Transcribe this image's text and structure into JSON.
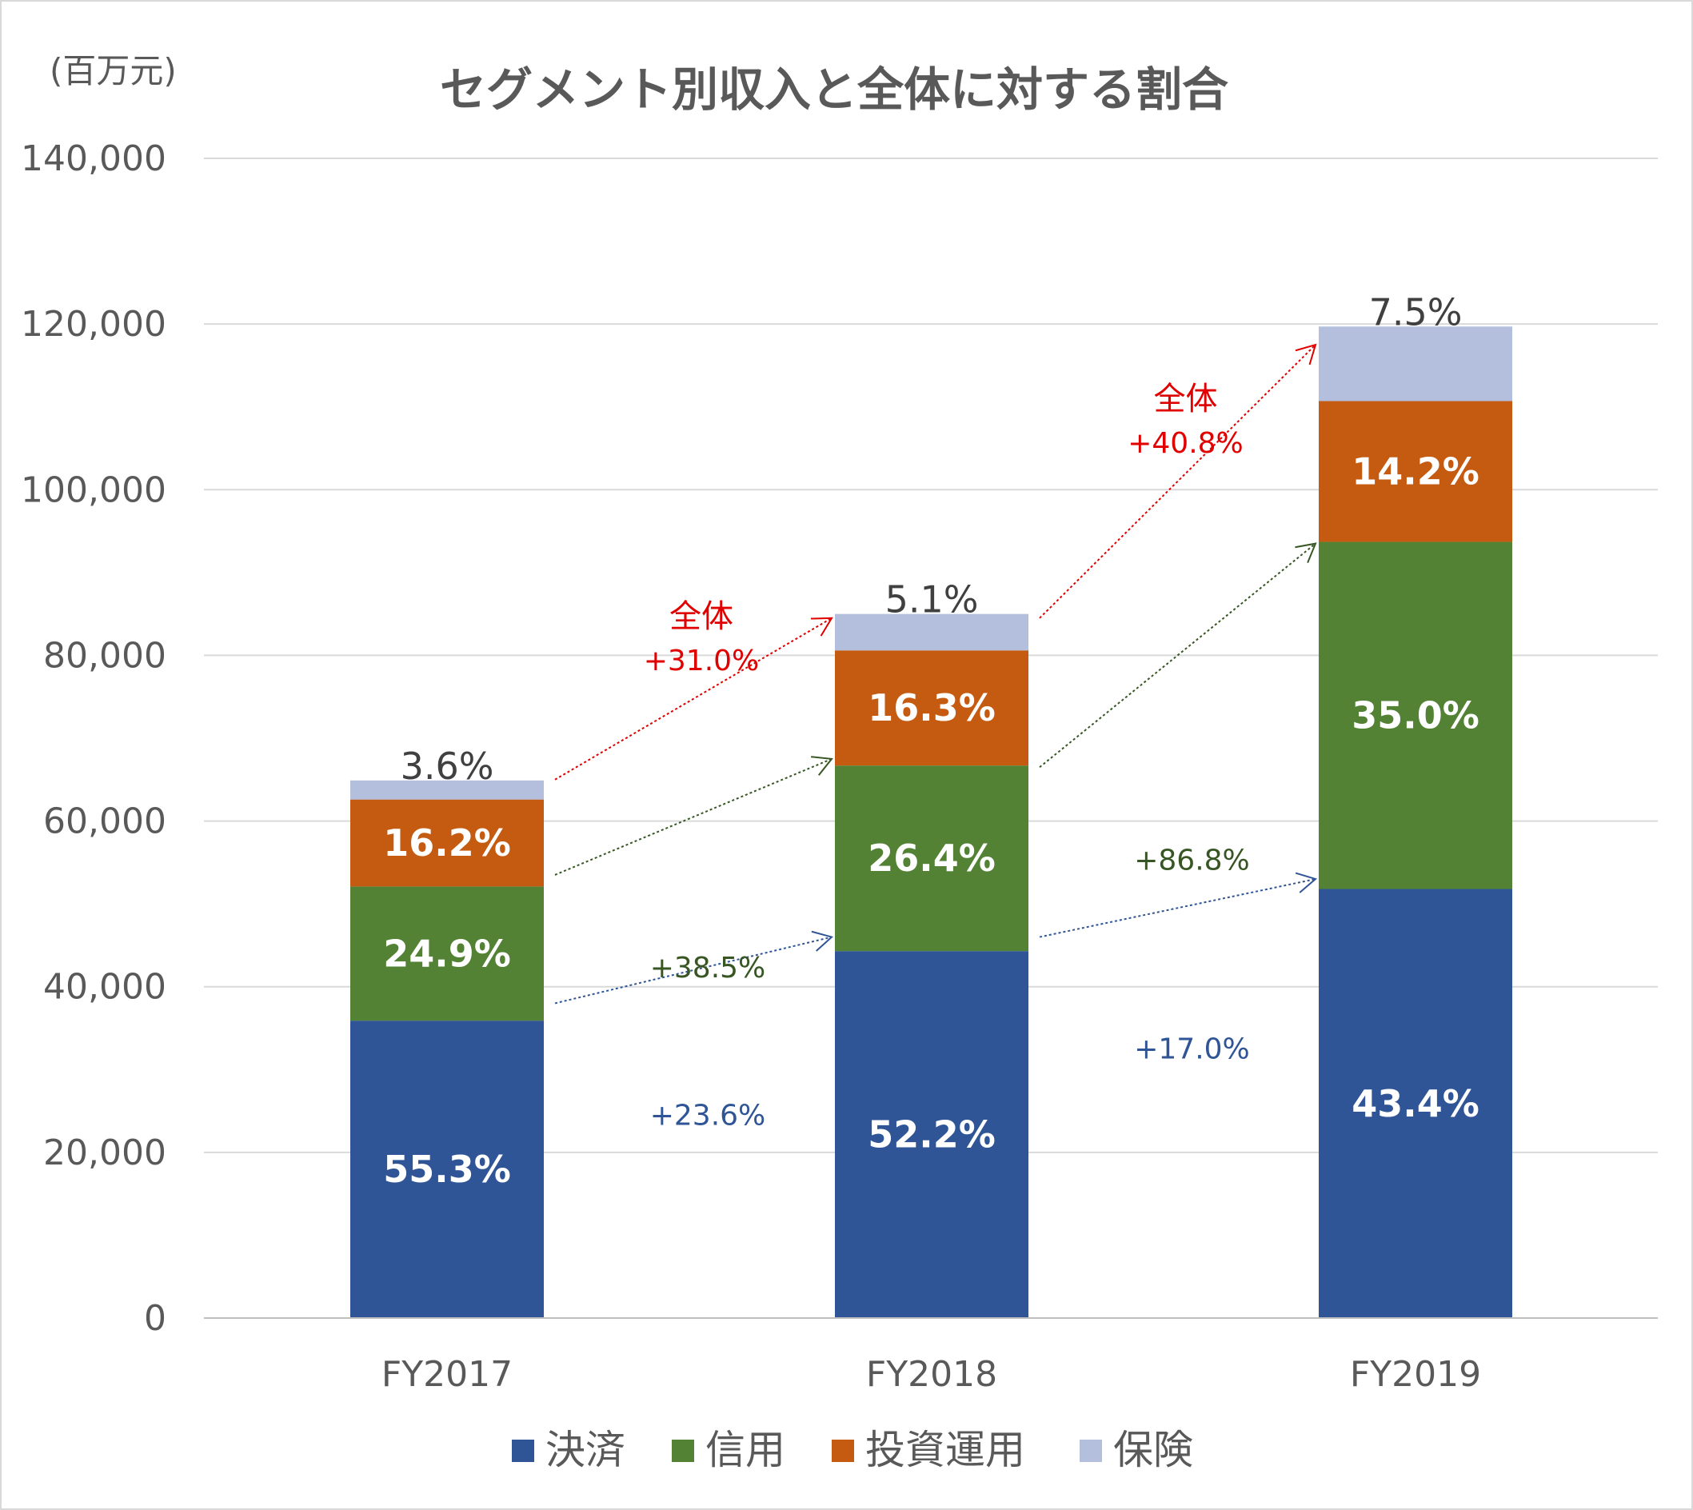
{
  "chart_data": {
    "type": "bar",
    "stacked": true,
    "title": "セグメント別収入と全体に対する割合",
    "unit_label": "(百万元)",
    "categories": [
      "FY2017",
      "FY2018",
      "FY2019"
    ],
    "ylim": [
      0,
      140000
    ],
    "yticks": [
      0,
      20000,
      40000,
      60000,
      80000,
      100000,
      120000,
      140000
    ],
    "ytick_labels": [
      "0",
      "20,000",
      "40,000",
      "60,000",
      "80,000",
      "100,000",
      "120,000",
      "140,000"
    ],
    "grid": true,
    "legend_position": "bottom",
    "series": [
      {
        "name": "決済",
        "color": "#2F5597",
        "values": [
          35900,
          44300,
          51800
        ],
        "labels": [
          "55.3%",
          "52.2%",
          "43.4%"
        ]
      },
      {
        "name": "信用",
        "color": "#548235",
        "values": [
          16200,
          22400,
          41900
        ],
        "labels": [
          "24.9%",
          "26.4%",
          "35.0%"
        ]
      },
      {
        "name": "投資運用",
        "color": "#C55A11",
        "values": [
          10500,
          13900,
          17000
        ],
        "labels": [
          "16.2%",
          "16.3%",
          "14.2%"
        ]
      },
      {
        "name": "保険",
        "color": "#B4BFDE",
        "values": [
          2300,
          4400,
          9000
        ],
        "labels": [
          "3.6%",
          "5.1%",
          "7.5%"
        ]
      }
    ],
    "annotations": [
      {
        "name": "payment-growth-1",
        "color": "#2F5597",
        "text": "+23.6%",
        "from": [
          0,
          38000
        ],
        "to": [
          1,
          46000
        ]
      },
      {
        "name": "payment-growth-2",
        "color": "#2F5597",
        "text": "+17.0%",
        "from": [
          1,
          46000
        ],
        "to": [
          2,
          53000
        ]
      },
      {
        "name": "credit-growth-1",
        "color": "#375623",
        "text": "+38.5%",
        "from": [
          0,
          53500
        ],
        "to": [
          1,
          67500
        ]
      },
      {
        "name": "credit-growth-2",
        "color": "#375623",
        "text": "+86.8%",
        "from": [
          1,
          66500
        ],
        "to": [
          2,
          93500
        ]
      },
      {
        "name": "total-growth-1",
        "color": "#E00000",
        "text": "+31.0%",
        "label": "全体",
        "from": [
          0,
          65000
        ],
        "to": [
          1,
          84500
        ]
      },
      {
        "name": "total-growth-2",
        "color": "#E00000",
        "text": "+40.8%",
        "label": "全体",
        "from": [
          1,
          84500
        ],
        "to": [
          2,
          117500
        ]
      }
    ]
  }
}
